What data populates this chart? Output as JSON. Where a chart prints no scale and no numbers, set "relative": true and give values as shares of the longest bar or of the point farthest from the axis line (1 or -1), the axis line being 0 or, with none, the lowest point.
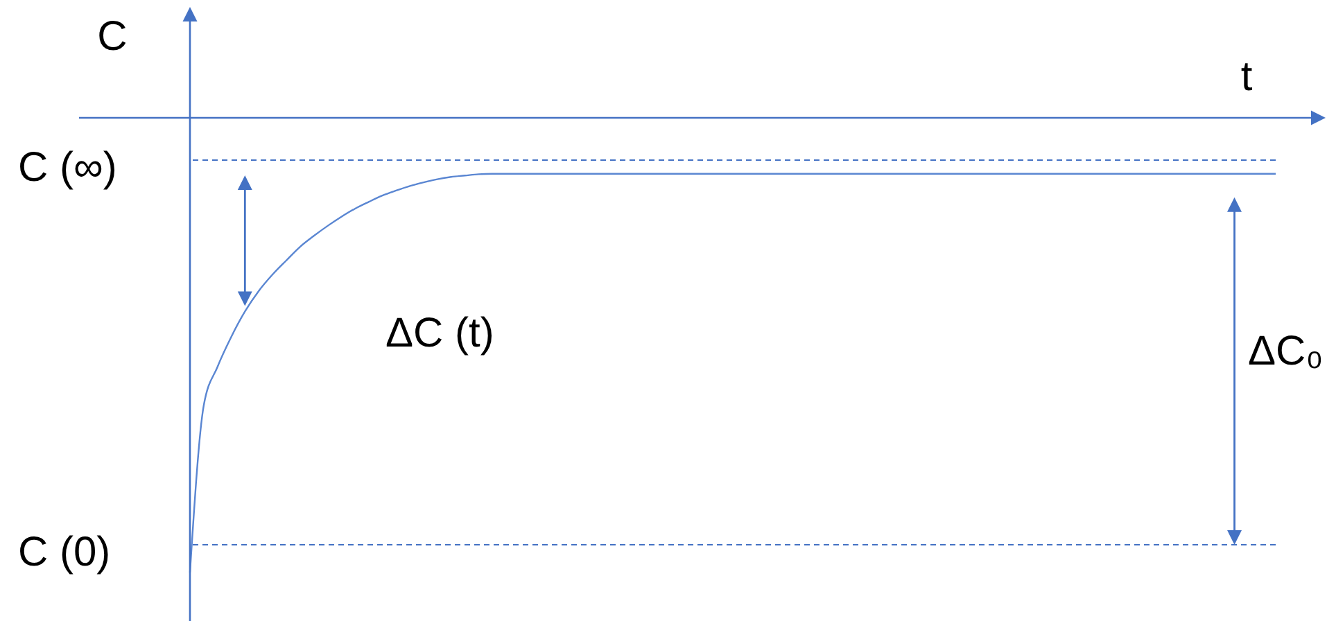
{
  "chart_data": {
    "type": "line",
    "xlabel": "t",
    "ylabel": "C",
    "relative": true,
    "categories": [
      null,
      null,
      null,
      null,
      null,
      null,
      null,
      null,
      null,
      null,
      null,
      null,
      null,
      null,
      null,
      null,
      null,
      null,
      null,
      null,
      null,
      null,
      null,
      null,
      null,
      null,
      null,
      null,
      null,
      null,
      null,
      null,
      null,
      null,
      null,
      null,
      null,
      null,
      null,
      null,
      null,
      null,
      null,
      null,
      null,
      null,
      null,
      null,
      null,
      null,
      null,
      null,
      null,
      null,
      null,
      null,
      null,
      null,
      null,
      null,
      null,
      null,
      null,
      null,
      null,
      null,
      null,
      null,
      null,
      null,
      null,
      null,
      null,
      null,
      null,
      null,
      null,
      null,
      null,
      null
    ],
    "series": [
      {
        "color": "#5a86d2",
        "values": [
          -1,
          -0.633,
          -0.548,
          -0.482,
          -0.426,
          -0.381,
          -0.345,
          -0.314,
          -0.284,
          -0.26,
          -0.238,
          -0.218,
          -0.2,
          -0.185,
          -0.171,
          -0.16,
          -0.15,
          -0.142,
          -0.135,
          -0.13,
          -0.127,
          -0.124,
          -0.123,
          -0.123,
          -0.123,
          -0.123,
          -0.123,
          -0.123,
          -0.123,
          -0.123,
          -0.123,
          -0.123,
          -0.123,
          -0.123,
          -0.123,
          -0.123,
          -0.123,
          -0.123,
          -0.123,
          -0.123,
          -0.123,
          -0.123,
          -0.123,
          -0.123,
          -0.123,
          -0.123,
          -0.123,
          -0.123,
          -0.123,
          -0.123,
          -0.123,
          -0.123,
          -0.123,
          -0.123,
          -0.123,
          -0.123,
          -0.123,
          -0.123,
          -0.123,
          -0.123,
          -0.123,
          -0.123,
          -0.123,
          -0.123,
          -0.123,
          -0.123,
          -0.123,
          -0.123,
          -0.123,
          -0.123,
          -0.123,
          -0.123,
          -0.123,
          -0.123,
          -0.123,
          -0.123,
          -0.123,
          -0.123,
          -0.123,
          -0.123
        ]
      }
    ],
    "ref_lines": [
      {
        "axis": "y",
        "value": -0.093,
        "label": "C (∞)",
        "color": "#4472c4",
        "line_style": "dashed"
      },
      {
        "axis": "y",
        "value": -0.939,
        "label": "C (0)",
        "color": "#4472c4",
        "line_style": "dashed"
      }
    ],
    "annotations": [
      "ΔC (t)",
      "ΔC₀"
    ]
  }
}
